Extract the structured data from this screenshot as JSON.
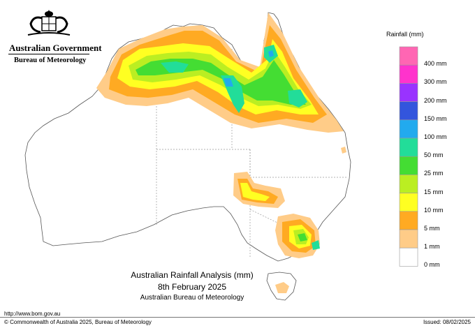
{
  "branding": {
    "government": "Australian Government",
    "agency": "Bureau of Meteorology"
  },
  "map_title": {
    "line1": "Australian Rainfall Analysis (mm)",
    "line2": "8th February 2025",
    "line3": "Australian Bureau of Meteorology"
  },
  "footer": {
    "url": "http://www.bom.gov.au",
    "copyright": "© Commonwealth of Australia 2025, Bureau of Meteorology",
    "issued": "Issued: 08/02/2025"
  },
  "legend": {
    "title": "Rainfall (mm)",
    "bands": [
      {
        "label": "400 mm",
        "color": "#ff66b3"
      },
      {
        "label": "300 mm",
        "color": "#ff33cc"
      },
      {
        "label": "200 mm",
        "color": "#9933ff"
      },
      {
        "label": "150 mm",
        "color": "#3355dd"
      },
      {
        "label": "100 mm",
        "color": "#22aaee"
      },
      {
        "label": "50 mm",
        "color": "#22dd99"
      },
      {
        "label": "25 mm",
        "color": "#44dd33"
      },
      {
        "label": "15 mm",
        "color": "#bbee22"
      },
      {
        "label": "10 mm",
        "color": "#ffff22"
      },
      {
        "label": "5 mm",
        "color": "#ffaa22"
      },
      {
        "label": "1 mm",
        "color": "#ffcc88"
      },
      {
        "label": "0 mm",
        "color": "#ffffff"
      }
    ]
  }
}
